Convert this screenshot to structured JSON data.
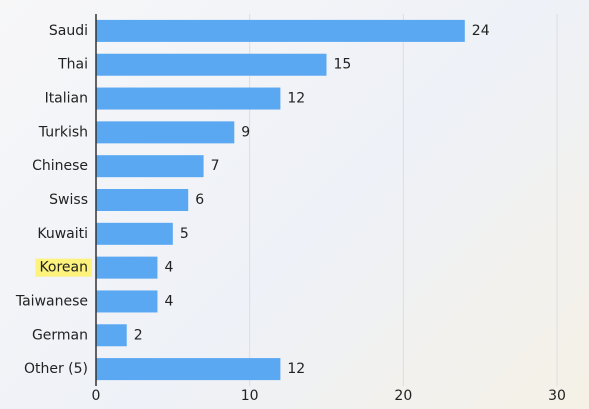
{
  "chart_data": {
    "type": "bar",
    "orientation": "horizontal",
    "categories": [
      "Saudi",
      "Thai",
      "Italian",
      "Turkish",
      "Chinese",
      "Swiss",
      "Kuwaiti",
      "Korean",
      "Taiwanese",
      "German",
      "Other (5)"
    ],
    "values": [
      24,
      15,
      12,
      9,
      7,
      6,
      5,
      4,
      4,
      2,
      12
    ],
    "color": "#5aa8f2",
    "value_label_color": "#4a9be6",
    "xlim": [
      0,
      30
    ],
    "xticks": [
      0,
      10,
      20,
      30
    ],
    "grid": true,
    "highlight": {
      "category": 7,
      "color": "#fcf27c"
    }
  }
}
